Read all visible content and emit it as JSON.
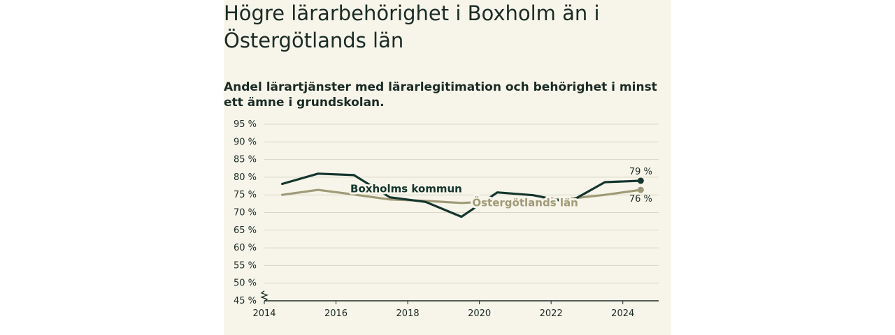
{
  "title": "Högre lärarbehörighet i Boxholm än i Östergötlands län",
  "subtitle": "Andel lärartjänster med lärarlegitimation och behörighet i minst ett ämne i grundskolan.",
  "colors": {
    "background": "#f7f5ea",
    "boxholm": "#14352d",
    "lan": "#9f9a77",
    "grid": "#d9d6c6",
    "text": "#1b2b26"
  },
  "chart_data": {
    "type": "line",
    "title": "Högre lärarbehörighet i Boxholm än i Östergötlands län",
    "subtitle": "Andel lärartjänster med lärarlegitimation och behörighet i minst ett ämne i grundskolan.",
    "xlabel": "",
    "ylabel": "",
    "xlim": [
      2014,
      2025
    ],
    "ylim": [
      45,
      95
    ],
    "yticks": [
      45,
      50,
      55,
      60,
      65,
      70,
      75,
      80,
      85,
      90,
      95
    ],
    "ytick_labels": [
      "45 %",
      "50 %",
      "55 %",
      "60 %",
      "65 %",
      "70 %",
      "75 %",
      "80 %",
      "85 %",
      "90 %",
      "95 %"
    ],
    "xticks": [
      2014,
      2016,
      2018,
      2020,
      2022,
      2024
    ],
    "xtick_labels": [
      "2014",
      "2016",
      "2018",
      "2020",
      "2022",
      "2024"
    ],
    "grid": true,
    "axis_break": true,
    "series": [
      {
        "name": "Boxholms kommun",
        "color": "#14352d",
        "x": [
          2014.5,
          2015.5,
          2016.5,
          2017.5,
          2018.5,
          2019.5,
          2020.5,
          2021.5,
          2022.5,
          2023.5,
          2024.5
        ],
        "y": [
          78.1,
          81.0,
          80.6,
          74.3,
          73.0,
          68.8,
          75.7,
          74.9,
          72.9,
          78.6,
          79.0
        ],
        "end_label": "79 %"
      },
      {
        "name": "Östergötlands län",
        "color": "#9f9a77",
        "x": [
          2014.5,
          2015.5,
          2016.5,
          2017.5,
          2018.5,
          2019.5,
          2020.5,
          2021.5,
          2022.5,
          2023.5,
          2024.5
        ],
        "y": [
          75.0,
          76.4,
          75.1,
          73.7,
          73.3,
          72.7,
          73.2,
          73.5,
          73.9,
          75.0,
          76.4
        ],
        "end_label": "76 %"
      }
    ]
  }
}
